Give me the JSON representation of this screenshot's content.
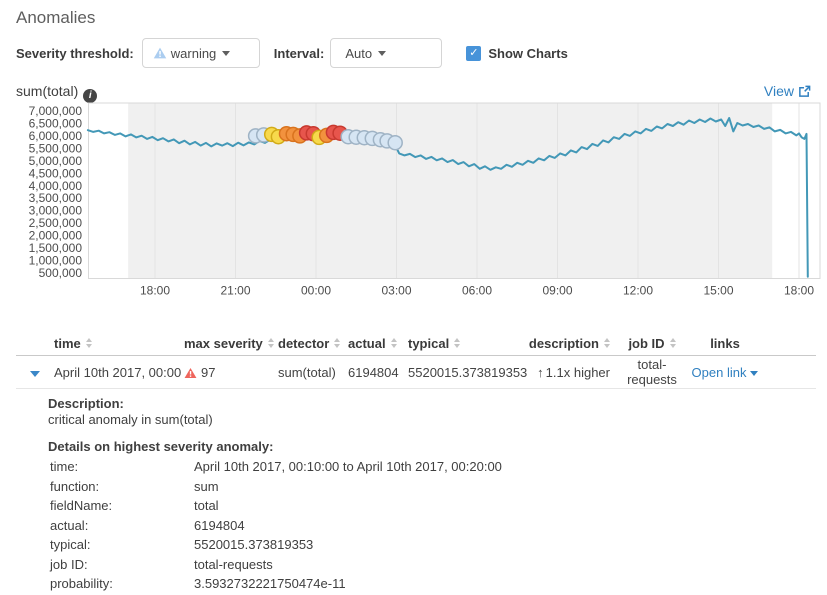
{
  "page": {
    "title": "Anomalies"
  },
  "icons": {
    "check": "✓",
    "info": "i",
    "up_arrow": "↑"
  },
  "controls": {
    "severity_label": "Severity threshold:",
    "severity_value": "warning",
    "interval_label": "Interval:",
    "interval_value": "Auto",
    "show_charts_label": "Show Charts"
  },
  "chart": {
    "view_label": "View"
  },
  "chart_data": {
    "type": "line",
    "title": "sum(total)",
    "x_unit": "hours after first 18:00 tick (Apr 9 18:00)",
    "y_unit": "sum(total), millions",
    "x_domain": [
      -2.5,
      24.8
    ],
    "y_axis_range": [
      500000,
      7000000
    ],
    "grid": "vertical-only",
    "shaded_t": [
      -1,
      23
    ],
    "x_ticks": [
      {
        "t": 0,
        "label": "18:00"
      },
      {
        "t": 3,
        "label": "21:00"
      },
      {
        "t": 6,
        "label": "00:00"
      },
      {
        "t": 9,
        "label": "03:00"
      },
      {
        "t": 12,
        "label": "06:00"
      },
      {
        "t": 15,
        "label": "09:00"
      },
      {
        "t": 18,
        "label": "12:00"
      },
      {
        "t": 21,
        "label": "15:00"
      },
      {
        "t": 24,
        "label": "18:00"
      }
    ],
    "y_ticks": [
      {
        "v": 7,
        "label": "7,000,000"
      },
      {
        "v": 6.5,
        "label": "6,500,000"
      },
      {
        "v": 6,
        "label": "6,000,000"
      },
      {
        "v": 5.5,
        "label": "5,500,000"
      },
      {
        "v": 5,
        "label": "5,000,000"
      },
      {
        "v": 4.5,
        "label": "4,500,000"
      },
      {
        "v": 4,
        "label": "4,000,000"
      },
      {
        "v": 3.5,
        "label": "3,500,000"
      },
      {
        "v": 3,
        "label": "3,000,000"
      },
      {
        "v": 2.5,
        "label": "2,500,000"
      },
      {
        "v": 2,
        "label": "2,000,000"
      },
      {
        "v": 1.5,
        "label": "1,500,000"
      },
      {
        "v": 1,
        "label": "1,000,000"
      },
      {
        "v": 0.5,
        "label": "500,000"
      }
    ],
    "series": [
      {
        "name": "sum(total)",
        "color": "#4398b7",
        "points": [
          [
            -2.5,
            6.23
          ],
          [
            -2.3,
            6.16
          ],
          [
            -2.1,
            6.21
          ],
          [
            -1.9,
            6.1
          ],
          [
            -1.7,
            6.15
          ],
          [
            -1.5,
            6.04
          ],
          [
            -1.3,
            6.1
          ],
          [
            -1.1,
            5.98
          ],
          [
            -0.9,
            6.06
          ],
          [
            -0.7,
            5.94
          ],
          [
            -0.5,
            6.01
          ],
          [
            -0.3,
            5.88
          ],
          [
            -0.1,
            5.96
          ],
          [
            0.1,
            5.83
          ],
          [
            0.3,
            5.91
          ],
          [
            0.5,
            5.78
          ],
          [
            0.7,
            5.86
          ],
          [
            0.9,
            5.71
          ],
          [
            1.1,
            5.81
          ],
          [
            1.3,
            5.66
          ],
          [
            1.5,
            5.76
          ],
          [
            1.7,
            5.61
          ],
          [
            1.9,
            5.72
          ],
          [
            2.1,
            5.58
          ],
          [
            2.3,
            5.7
          ],
          [
            2.5,
            5.61
          ],
          [
            2.7,
            5.71
          ],
          [
            2.9,
            5.59
          ],
          [
            3.1,
            5.73
          ],
          [
            3.3,
            5.62
          ],
          [
            3.5,
            5.74
          ],
          [
            3.7,
            5.66
          ],
          [
            3.9,
            5.8
          ],
          [
            4.1,
            5.72
          ],
          [
            4.3,
            5.86
          ],
          [
            4.5,
            5.78
          ],
          [
            4.7,
            5.92
          ],
          [
            4.9,
            5.84
          ],
          [
            5.1,
            5.97
          ],
          [
            5.3,
            5.89
          ],
          [
            5.5,
            6.0
          ],
          [
            5.7,
            5.93
          ],
          [
            5.9,
            6.04
          ],
          [
            6.1,
            5.96
          ],
          [
            6.3,
            6.05
          ],
          [
            6.5,
            5.98
          ],
          [
            6.7,
            6.04
          ],
          [
            6.9,
            5.96
          ],
          [
            7.1,
            6.01
          ],
          [
            7.3,
            5.93
          ],
          [
            7.5,
            5.98
          ],
          [
            7.7,
            5.9
          ],
          [
            7.9,
            5.94
          ],
          [
            8.1,
            5.86
          ],
          [
            8.3,
            5.9
          ],
          [
            8.5,
            5.81
          ],
          [
            8.7,
            5.85
          ],
          [
            8.9,
            5.74
          ],
          [
            9.1,
            5.3
          ],
          [
            9.3,
            5.22
          ],
          [
            9.5,
            5.28
          ],
          [
            9.7,
            5.15
          ],
          [
            9.9,
            5.22
          ],
          [
            10.1,
            5.08
          ],
          [
            10.3,
            5.16
          ],
          [
            10.5,
            5.02
          ],
          [
            10.7,
            5.1
          ],
          [
            10.9,
            4.95
          ],
          [
            11.1,
            5.03
          ],
          [
            11.3,
            4.87
          ],
          [
            11.5,
            4.95
          ],
          [
            11.7,
            4.78
          ],
          [
            11.9,
            4.87
          ],
          [
            12.1,
            4.68
          ],
          [
            12.3,
            4.78
          ],
          [
            12.5,
            4.64
          ],
          [
            12.7,
            4.74
          ],
          [
            12.9,
            4.68
          ],
          [
            13.1,
            4.84
          ],
          [
            13.3,
            4.76
          ],
          [
            13.5,
            4.92
          ],
          [
            13.7,
            4.84
          ],
          [
            13.9,
            5.0
          ],
          [
            14.1,
            4.92
          ],
          [
            14.3,
            5.1
          ],
          [
            14.5,
            5.02
          ],
          [
            14.7,
            5.2
          ],
          [
            14.9,
            5.12
          ],
          [
            15.1,
            5.3
          ],
          [
            15.3,
            5.22
          ],
          [
            15.5,
            5.42
          ],
          [
            15.7,
            5.34
          ],
          [
            15.9,
            5.55
          ],
          [
            16.1,
            5.47
          ],
          [
            16.3,
            5.68
          ],
          [
            16.5,
            5.6
          ],
          [
            16.7,
            5.82
          ],
          [
            16.9,
            5.74
          ],
          [
            17.1,
            5.95
          ],
          [
            17.3,
            5.88
          ],
          [
            17.5,
            6.08
          ],
          [
            17.7,
            6.0
          ],
          [
            17.9,
            6.18
          ],
          [
            18.1,
            6.1
          ],
          [
            18.3,
            6.28
          ],
          [
            18.5,
            6.2
          ],
          [
            18.7,
            6.38
          ],
          [
            18.9,
            6.3
          ],
          [
            19.1,
            6.48
          ],
          [
            19.3,
            6.4
          ],
          [
            19.5,
            6.55
          ],
          [
            19.7,
            6.45
          ],
          [
            19.9,
            6.62
          ],
          [
            20.1,
            6.52
          ],
          [
            20.3,
            6.66
          ],
          [
            20.5,
            6.56
          ],
          [
            20.7,
            6.7
          ],
          [
            20.9,
            6.58
          ],
          [
            21.1,
            6.66
          ],
          [
            21.25,
            6.4
          ],
          [
            21.4,
            6.72
          ],
          [
            21.55,
            6.18
          ],
          [
            21.7,
            6.52
          ],
          [
            21.9,
            6.42
          ],
          [
            22.1,
            6.48
          ],
          [
            22.3,
            6.36
          ],
          [
            22.5,
            6.42
          ],
          [
            22.7,
            6.28
          ],
          [
            22.9,
            6.34
          ],
          [
            23.1,
            6.18
          ],
          [
            23.3,
            6.24
          ],
          [
            23.5,
            6.1
          ],
          [
            23.7,
            6.16
          ],
          [
            23.9,
            6.02
          ],
          [
            24.0,
            6.1
          ],
          [
            24.1,
            5.94
          ],
          [
            24.2,
            5.88
          ],
          [
            24.28,
            6.08
          ],
          [
            24.33,
            0.35
          ]
        ]
      }
    ],
    "anomalies": {
      "colors": {
        "warning": {
          "fill": "#d6e5f3",
          "stroke": "#9fb3c5"
        },
        "minor": {
          "fill": "#f7d94c",
          "stroke": "#d2ab18"
        },
        "major": {
          "fill": "#f2923e",
          "stroke": "#d9731e"
        },
        "critical": {
          "fill": "#e7554c",
          "stroke": "#c8392f"
        }
      },
      "points": [
        [
          3.75,
          6.0,
          "warning"
        ],
        [
          4.05,
          6.04,
          "warning"
        ],
        [
          4.35,
          6.06,
          "minor"
        ],
        [
          4.6,
          5.97,
          "minor"
        ],
        [
          4.9,
          6.09,
          "major"
        ],
        [
          5.15,
          6.06,
          "major"
        ],
        [
          5.4,
          6.0,
          "major"
        ],
        [
          5.65,
          6.12,
          "critical"
        ],
        [
          5.9,
          6.09,
          "critical"
        ],
        [
          6.12,
          5.94,
          "minor"
        ],
        [
          6.4,
          6.02,
          "major"
        ],
        [
          6.65,
          6.14,
          "critical"
        ],
        [
          6.9,
          6.11,
          "critical"
        ],
        [
          7.2,
          5.97,
          "warning"
        ],
        [
          7.5,
          5.95,
          "warning"
        ],
        [
          7.8,
          5.93,
          "warning"
        ],
        [
          8.1,
          5.9,
          "warning"
        ],
        [
          8.4,
          5.85,
          "warning"
        ],
        [
          8.65,
          5.8,
          "warning"
        ],
        [
          8.95,
          5.73,
          "warning"
        ]
      ]
    }
  },
  "table": {
    "headers": [
      {
        "label": "time"
      },
      {
        "label": "max severity"
      },
      {
        "label": "detector"
      },
      {
        "label": "actual"
      },
      {
        "label": "typical"
      },
      {
        "label": "description"
      },
      {
        "label": "job ID"
      },
      {
        "label": "links"
      }
    ],
    "row": {
      "time": "April 10th 2017, 00:00",
      "severity_score": "97",
      "detector": "sum(total)",
      "actual": "6194804",
      "typical": "5520015.373819353",
      "description": "1.1x higher",
      "job_id": "total-requests",
      "links": "Open link"
    },
    "details": {
      "description_label": "Description:",
      "description": "critical anomaly in sum(total)",
      "details_label": "Details on highest severity anomaly:",
      "rows": [
        {
          "label": "time:",
          "value": "April 10th 2017, 00:10:00 to April 10th 2017, 00:20:00"
        },
        {
          "label": "function:",
          "value": "sum"
        },
        {
          "label": "fieldName:",
          "value": "total"
        },
        {
          "label": "actual:",
          "value": "6194804"
        },
        {
          "label": "typical:",
          "value": "5520015.373819353"
        },
        {
          "label": "job ID:",
          "value": "total-requests"
        },
        {
          "label": "probability:",
          "value": "3.5932732221750474e-11"
        }
      ]
    }
  }
}
